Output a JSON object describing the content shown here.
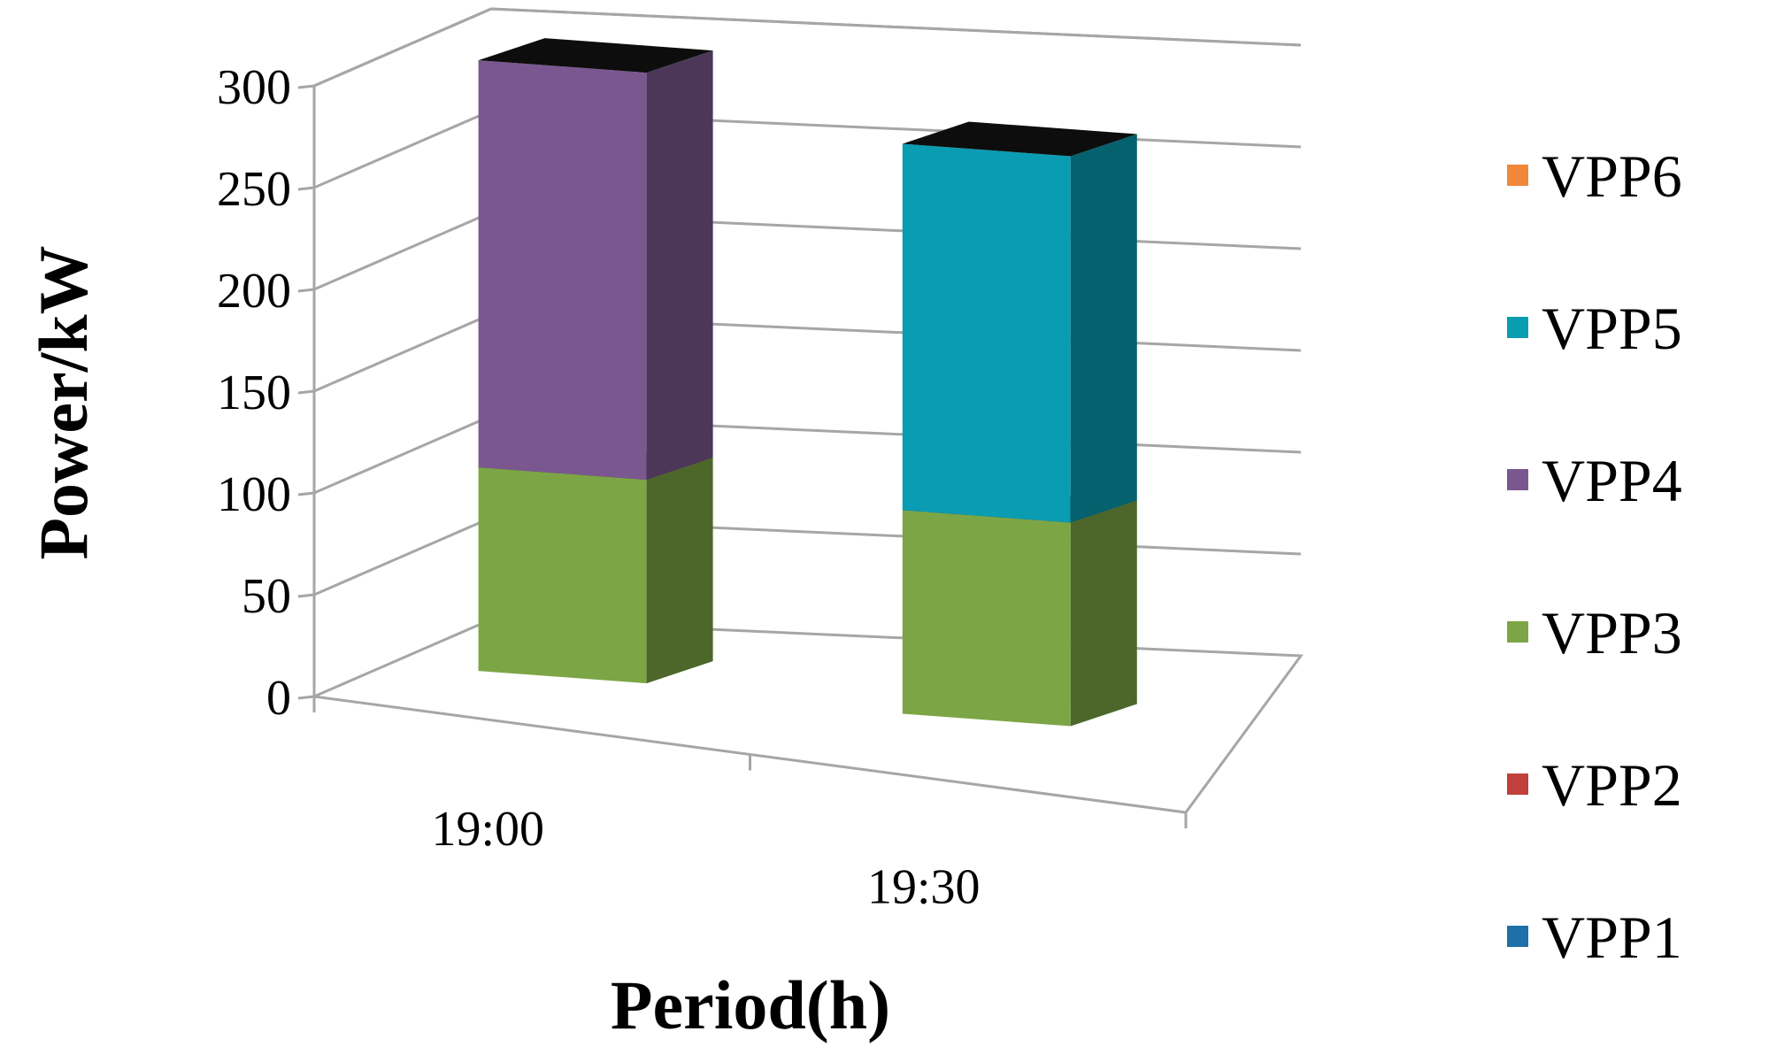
{
  "chart_data": {
    "type": "bar",
    "stacked": true,
    "three_d": true,
    "title": "",
    "xlabel": "Period(h)",
    "ylabel": "Power/kW",
    "ylim": [
      0,
      300
    ],
    "yticks": [
      "0",
      "50",
      "100",
      "150",
      "200",
      "250",
      "300"
    ],
    "categories": [
      "19:00",
      "19:30"
    ],
    "grid": true,
    "legend_position": "right",
    "legend_order": [
      "VPP6",
      "VPP5",
      "VPP4",
      "VPP3",
      "VPP2",
      "VPP1"
    ],
    "series": [
      {
        "name": "VPP1",
        "color": "#1f6fa8",
        "values": [
          0,
          0
        ]
      },
      {
        "name": "VPP2",
        "color": "#c0403c",
        "values": [
          0,
          0
        ]
      },
      {
        "name": "VPP3",
        "color": "#7ca645",
        "values": [
          100,
          100
        ]
      },
      {
        "name": "VPP4",
        "color": "#7a588f",
        "values": [
          200,
          0
        ]
      },
      {
        "name": "VPP5",
        "color": "#0a9cb1",
        "values": [
          0,
          180
        ]
      },
      {
        "name": "VPP6",
        "color": "#f0883a",
        "values": [
          0,
          0
        ]
      }
    ]
  }
}
